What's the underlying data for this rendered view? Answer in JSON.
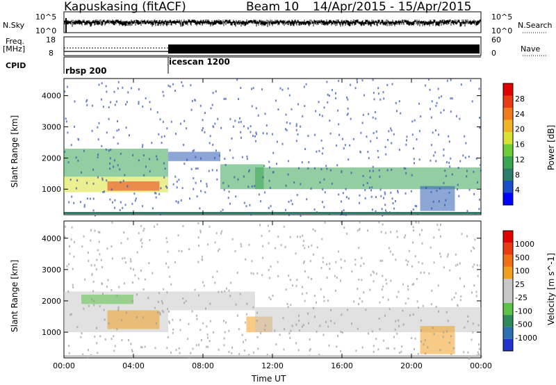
{
  "header": {
    "station": "Kapuskasing (fitACF)",
    "beam": "Beam 10",
    "date_range": "14/Apr/2015 - 15/Apr/2015"
  },
  "strip_labels": {
    "nsky": "N.Sky",
    "nsky_ticks": [
      "10^5",
      "10^0"
    ],
    "nsearch": "N.Search",
    "freq_top": "Freq.",
    "freq_unit": "[MHz]",
    "freq_ticks": [
      "18",
      "8"
    ],
    "nave_ticks": [
      "60",
      "0"
    ],
    "nave": "Nave",
    "cpid": "CPID"
  },
  "cpid_blocks": [
    {
      "name": "rbsp 200",
      "start_hour": 0
    },
    {
      "name": "icescan 1200",
      "start_hour": 6
    }
  ],
  "x_axis": {
    "label": "Time UT",
    "ticks": [
      "00:00",
      "04:00",
      "08:00",
      "12:00",
      "16:00",
      "20:00",
      "00:00"
    ]
  },
  "chart_data": [
    {
      "type": "heatmap",
      "title": "",
      "xlabel": "Time UT",
      "ylabel": "Slant Range [km]",
      "xlim": [
        0,
        24
      ],
      "ylim": [
        180,
        4550
      ],
      "yticks": [
        "1000",
        "2000",
        "3000",
        "4000"
      ],
      "colorbar": {
        "label": "Power [dB]",
        "ticks": [
          "4",
          "8",
          "12",
          "16",
          "20",
          "24",
          "28"
        ],
        "colors": [
          "#0000ff",
          "#1a4fc8",
          "#2e7d6a",
          "#3aa655",
          "#6ccc3c",
          "#d8e234",
          "#f0b429",
          "#f07a1e",
          "#e83a14",
          "#e00000"
        ]
      },
      "regions": [
        {
          "t0": 0.0,
          "t1": 6.0,
          "r0": 1400,
          "r1": 2300,
          "level": "mid"
        },
        {
          "t0": 0.0,
          "t1": 6.0,
          "r0": 900,
          "r1": 1400,
          "level": "high"
        },
        {
          "t0": 2.5,
          "t1": 5.5,
          "r0": 950,
          "r1": 1250,
          "level": "max"
        },
        {
          "t0": 6.0,
          "t1": 9.0,
          "r0": 1900,
          "r1": 2200,
          "level": "low"
        },
        {
          "t0": 9.0,
          "t1": 11.5,
          "r0": 1000,
          "r1": 1800,
          "level": "mid"
        },
        {
          "t0": 11.0,
          "t1": 24.0,
          "r0": 1000,
          "r1": 1700,
          "level": "mid"
        },
        {
          "t0": 20.5,
          "t1": 22.5,
          "r0": 300,
          "r1": 1100,
          "level": "low"
        }
      ]
    },
    {
      "type": "heatmap",
      "title": "",
      "xlabel": "Time UT",
      "ylabel": "Slant Range [km]",
      "xlim": [
        0,
        24
      ],
      "ylim": [
        180,
        4550
      ],
      "yticks": [
        "1000",
        "2000",
        "3000",
        "4000"
      ],
      "colorbar": {
        "label": "Velocity [m s^-1]",
        "ticks": [
          "1000",
          "500",
          "100",
          "25",
          "-25",
          "-100",
          "-500",
          "-1000"
        ],
        "colors": [
          "#2233cc",
          "#2e6fb0",
          "#2e8a5a",
          "#5cc24a",
          "#c8c8c8",
          "#c8c8c8",
          "#f0a020",
          "#f07018",
          "#e83a10",
          "#e00000"
        ]
      },
      "regions": [
        {
          "t0": 0.0,
          "t1": 6.0,
          "r0": 1000,
          "r1": 2300,
          "level": "gray"
        },
        {
          "t0": 1.0,
          "t1": 4.0,
          "r0": 1900,
          "r1": 2200,
          "level": "green"
        },
        {
          "t0": 2.5,
          "t1": 5.5,
          "r0": 1100,
          "r1": 1700,
          "level": "orange"
        },
        {
          "t0": 6.0,
          "t1": 11.0,
          "r0": 1700,
          "r1": 2300,
          "level": "gray"
        },
        {
          "t0": 10.5,
          "t1": 12.0,
          "r0": 1000,
          "r1": 1500,
          "level": "orange"
        },
        {
          "t0": 11.0,
          "t1": 24.0,
          "r0": 1000,
          "r1": 1800,
          "level": "gray"
        },
        {
          "t0": 20.5,
          "t1": 22.5,
          "r0": 300,
          "r1": 1200,
          "level": "orange"
        }
      ]
    }
  ]
}
